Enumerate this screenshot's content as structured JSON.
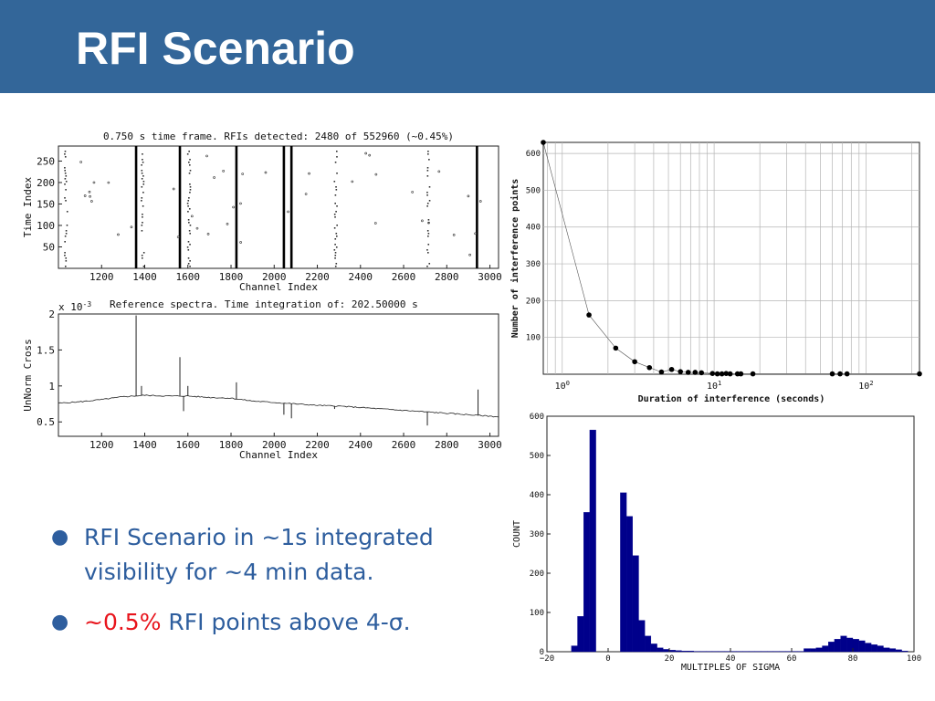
{
  "slide": {
    "title": "RFI Scenario",
    "colors": {
      "title_bar": "#336699",
      "bullet_text": "#2e5e9e",
      "highlight": "#e8141c",
      "histogram_bar": "#00008b"
    },
    "bullets": [
      {
        "text": "RFI Scenario in ~1s integrated visibility for ~4 min data."
      },
      {
        "highlight": "~0.5%",
        "text": " RFI points above 4-σ."
      }
    ]
  },
  "chart_data": [
    {
      "id": "rfi-scatter",
      "type": "scatter",
      "title": "0.750 s time frame. RFIs detected: 2480 of 552960 (~0.45%)",
      "xlabel": "Channel Index",
      "ylabel": "Time Index",
      "xlim": [
        1000,
        3040
      ],
      "ylim": [
        0,
        285
      ],
      "xticks": [
        1200,
        1400,
        1600,
        1800,
        2000,
        2200,
        2400,
        2600,
        2800,
        3000
      ],
      "yticks": [
        50,
        100,
        150,
        200,
        250
      ],
      "grid": false,
      "rfi_channels": [
        {
          "channel": 1360,
          "density": "full"
        },
        {
          "channel": 1385,
          "density": "partial"
        },
        {
          "channel": 1563,
          "density": "full"
        },
        {
          "channel": 1600,
          "density": "partial"
        },
        {
          "channel": 1825,
          "density": "full"
        },
        {
          "channel": 2045,
          "density": "full"
        },
        {
          "channel": 2080,
          "density": "full"
        },
        {
          "channel": 2280,
          "density": "partial"
        },
        {
          "channel": 2710,
          "density": "partial"
        },
        {
          "channel": 2940,
          "density": "full"
        },
        {
          "channel": 1030,
          "density": "partial"
        }
      ]
    },
    {
      "id": "reference-spectrum",
      "type": "line",
      "title": "Reference spectra. Time integration of: 202.50000 s",
      "scale_label": "x 10",
      "scale_exponent": "-3",
      "xlabel": "Channel Index",
      "ylabel": "UnNorm Cross",
      "xlim": [
        1000,
        3040
      ],
      "ylim": [
        0.3,
        2.0
      ],
      "xticks": [
        1200,
        1400,
        1600,
        1800,
        2000,
        2200,
        2400,
        2600,
        2800,
        3000
      ],
      "yticks": [
        0.5,
        1,
        1.5,
        2
      ],
      "ytick_labels": [
        "0.5",
        "1",
        "1.5",
        "2"
      ],
      "grid": false,
      "baseline": {
        "x": [
          1000,
          1100,
          1200,
          1300,
          1400,
          1500,
          1600,
          1700,
          1800,
          1900,
          2000,
          2100,
          2200,
          2300,
          2400,
          2500,
          2600,
          2700,
          2800,
          2900,
          3000,
          3040
        ],
        "y": [
          0.76,
          0.78,
          0.81,
          0.85,
          0.87,
          0.86,
          0.86,
          0.84,
          0.83,
          0.79,
          0.77,
          0.75,
          0.73,
          0.72,
          0.7,
          0.68,
          0.66,
          0.64,
          0.62,
          0.6,
          0.58,
          0.57
        ]
      },
      "spikes": [
        {
          "x": 1360,
          "y": 1.98
        },
        {
          "x": 1385,
          "y": 1.0
        },
        {
          "x": 1563,
          "y": 1.4
        },
        {
          "x": 1580,
          "y": 0.65
        },
        {
          "x": 1600,
          "y": 1.0
        },
        {
          "x": 1825,
          "y": 1.05
        },
        {
          "x": 2045,
          "y": 0.6
        },
        {
          "x": 2080,
          "y": 0.55
        },
        {
          "x": 2280,
          "y": 0.68
        },
        {
          "x": 2710,
          "y": 0.45
        },
        {
          "x": 2945,
          "y": 0.95
        }
      ]
    },
    {
      "id": "duration-plot",
      "type": "line",
      "xlabel": "Duration of interference (seconds)",
      "ylabel": "Number of interference points",
      "xscale": "log",
      "xlim": [
        0.75,
        225
      ],
      "ylim": [
        0,
        630
      ],
      "xticks": [
        1,
        10,
        100
      ],
      "xtick_labels": [
        {
          "base": "10",
          "exp": "0"
        },
        {
          "base": "10",
          "exp": "1"
        },
        {
          "base": "10",
          "exp": "2"
        }
      ],
      "yticks": [
        100,
        200,
        300,
        400,
        500,
        600
      ],
      "grid": true,
      "x": [
        0.75,
        1.5,
        2.25,
        3.0,
        3.75,
        4.5,
        5.25,
        6.0,
        6.75,
        7.5,
        8.25,
        9.75,
        10.5,
        11.25,
        12.0,
        12.75,
        14.25,
        15.0,
        18.0,
        60.0,
        67.5,
        75.0,
        225.0
      ],
      "y": [
        630,
        161,
        71,
        34,
        18,
        6,
        13,
        7,
        5,
        5,
        4,
        2,
        1,
        1,
        2,
        1,
        1,
        1,
        1,
        1,
        1,
        1,
        1
      ]
    },
    {
      "id": "sigma-histogram",
      "type": "bar",
      "xlabel": "MULTIPLES OF SIGMA",
      "ylabel": "COUNT",
      "xlim": [
        -20,
        100
      ],
      "ylim": [
        0,
        600
      ],
      "xticks": [
        -20,
        0,
        20,
        40,
        60,
        80,
        100
      ],
      "xtick_labels": [
        "−20",
        "0",
        "20",
        "40",
        "60",
        "80",
        "100"
      ],
      "yticks": [
        0,
        100,
        200,
        300,
        400,
        500,
        600
      ],
      "grid": false,
      "bin_width": 2,
      "bins": [
        [
          -12,
          15
        ],
        [
          -10,
          90
        ],
        [
          -8,
          355
        ],
        [
          -6,
          565
        ],
        [
          -4,
          0
        ],
        [
          -2,
          0
        ],
        [
          0,
          0
        ],
        [
          2,
          0
        ],
        [
          4,
          405
        ],
        [
          6,
          345
        ],
        [
          8,
          245
        ],
        [
          10,
          80
        ],
        [
          12,
          40
        ],
        [
          14,
          20
        ],
        [
          16,
          10
        ],
        [
          18,
          6
        ],
        [
          20,
          4
        ],
        [
          22,
          3
        ],
        [
          24,
          2
        ],
        [
          26,
          2
        ],
        [
          28,
          1
        ],
        [
          30,
          1
        ],
        [
          32,
          1
        ],
        [
          34,
          1
        ],
        [
          36,
          1
        ],
        [
          38,
          1
        ],
        [
          40,
          1
        ],
        [
          42,
          1
        ],
        [
          44,
          1
        ],
        [
          46,
          1
        ],
        [
          48,
          1
        ],
        [
          50,
          1
        ],
        [
          52,
          1
        ],
        [
          54,
          1
        ],
        [
          56,
          1
        ],
        [
          58,
          1
        ],
        [
          60,
          1
        ],
        [
          62,
          1
        ],
        [
          64,
          8
        ],
        [
          66,
          8
        ],
        [
          68,
          10
        ],
        [
          70,
          15
        ],
        [
          72,
          25
        ],
        [
          74,
          32
        ],
        [
          76,
          40
        ],
        [
          78,
          35
        ],
        [
          80,
          32
        ],
        [
          82,
          28
        ],
        [
          84,
          22
        ],
        [
          86,
          18
        ],
        [
          88,
          15
        ],
        [
          90,
          10
        ],
        [
          92,
          8
        ],
        [
          94,
          5
        ],
        [
          96,
          2
        ]
      ]
    }
  ]
}
